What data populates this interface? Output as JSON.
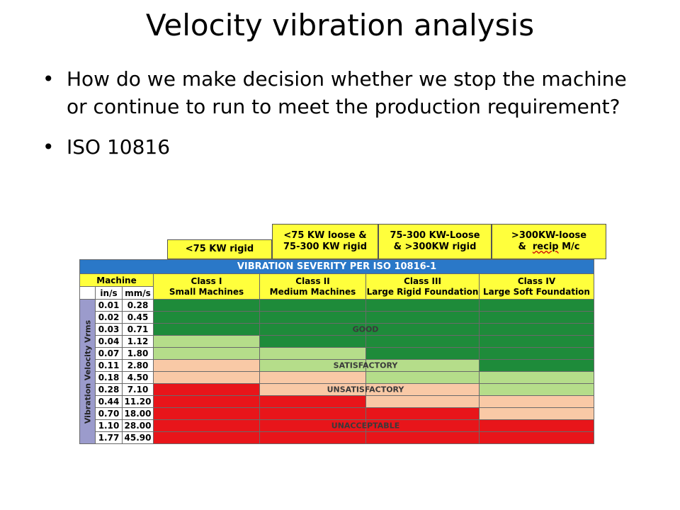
{
  "slide": {
    "title": "Velocity vibration analysis",
    "bullets": [
      "How do we make decision whether we stop the machine or continue to run to meet the production requirement?",
      "ISO 10816"
    ]
  },
  "table": {
    "top_headers": [
      "<75 KW rigid",
      "<75 KW loose &",
      "75-300 KW rigid",
      "75-300 KW-Loose",
      "& >300KW rigid",
      ">300KW-loose",
      "&",
      "recip",
      "M/c"
    ],
    "title": "VIBRATION SEVERITY PER ISO 10816-1",
    "machine_label": "Machine",
    "units": [
      "in/s",
      "mm/s"
    ],
    "classes": [
      {
        "name": "Class I",
        "desc": "Small Machines"
      },
      {
        "name": "Class II",
        "desc": "Medium Machines"
      },
      {
        "name": "Class III",
        "desc": "Large Rigid Foundation"
      },
      {
        "name": "Class IV",
        "desc": "Large Soft Foundation"
      }
    ],
    "axis_label": "Vibration Velocity Vrms",
    "zones": [
      "GOOD",
      "SATISFACTORY",
      "UNSATISFACTORY",
      "UNACCEPTABLE"
    ],
    "rows": [
      {
        "ins": "0.01",
        "mms": "0.28",
        "zones": [
          "G",
          "G",
          "G",
          "G"
        ]
      },
      {
        "ins": "0.02",
        "mms": "0.45",
        "zones": [
          "G",
          "G",
          "G",
          "G"
        ]
      },
      {
        "ins": "0.03",
        "mms": "0.71",
        "zones": [
          "G",
          "G",
          "G",
          "G"
        ]
      },
      {
        "ins": "0.04",
        "mms": "1.12",
        "zones": [
          "L",
          "G",
          "G",
          "G"
        ]
      },
      {
        "ins": "0.07",
        "mms": "1.80",
        "zones": [
          "L",
          "L",
          "G",
          "G"
        ]
      },
      {
        "ins": "0.11",
        "mms": "2.80",
        "zones": [
          "P",
          "L",
          "L",
          "G"
        ]
      },
      {
        "ins": "0.18",
        "mms": "4.50",
        "zones": [
          "P",
          "P",
          "L",
          "L"
        ]
      },
      {
        "ins": "0.28",
        "mms": "7.10",
        "zones": [
          "R",
          "P",
          "P",
          "L"
        ]
      },
      {
        "ins": "0.44",
        "mms": "11.20",
        "zones": [
          "R",
          "R",
          "P",
          "P"
        ]
      },
      {
        "ins": "0.70",
        "mms": "18.00",
        "zones": [
          "R",
          "R",
          "R",
          "P"
        ]
      },
      {
        "ins": "1.10",
        "mms": "28.00",
        "zones": [
          "R",
          "R",
          "R",
          "R"
        ]
      },
      {
        "ins": "1.77",
        "mms": "45.90",
        "zones": [
          "R",
          "R",
          "R",
          "R"
        ]
      }
    ],
    "colors": {
      "G": "#1e8b3a",
      "L": "#b5dd8a",
      "P": "#f9c9a6",
      "R": "#e8151a",
      "header": "#ffff3c",
      "banner": "#2a78c8"
    }
  }
}
